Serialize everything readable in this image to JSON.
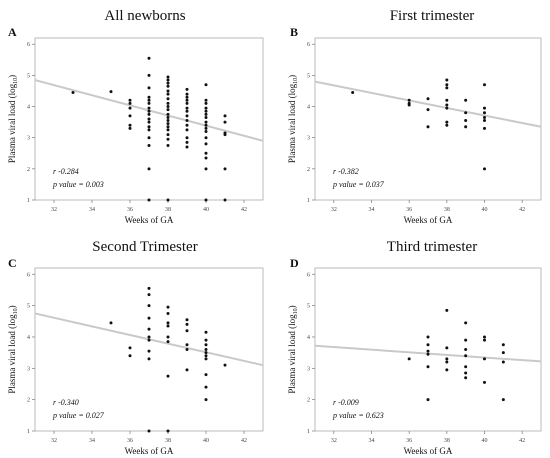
{
  "chart_data": [
    {
      "type": "scatter",
      "panel_letter": "A",
      "title": "All newborns",
      "xlabel": "Weeks of GA",
      "ylabel_main": "Plasma viral load (log",
      "ylabel_sub": "10",
      "ylabel_close": ")",
      "xlim": [
        31,
        43
      ],
      "ylim": [
        1,
        6.2
      ],
      "xticks": [
        "32",
        "34",
        "36",
        "38",
        "40",
        "42"
      ],
      "yticks": [
        "1",
        "2",
        "3",
        "4",
        "5",
        "6"
      ],
      "grid": false,
      "stats": {
        "r": "r -0.284",
        "p": "p value = 0.003"
      },
      "regression": {
        "x": [
          31,
          43
        ],
        "y": [
          4.85,
          2.9
        ]
      },
      "points": [
        [
          33,
          4.45
        ],
        [
          35,
          4.48
        ],
        [
          36,
          4.2
        ],
        [
          36,
          4.1
        ],
        [
          36,
          3.95
        ],
        [
          36,
          3.7
        ],
        [
          36,
          3.4
        ],
        [
          36,
          3.3
        ],
        [
          37,
          5.55
        ],
        [
          37,
          5.0
        ],
        [
          37,
          4.6
        ],
        [
          37,
          4.3
        ],
        [
          37,
          4.2
        ],
        [
          37,
          4.1
        ],
        [
          37,
          3.95
        ],
        [
          37,
          3.85
        ],
        [
          37,
          3.75
        ],
        [
          37,
          3.6
        ],
        [
          37,
          3.5
        ],
        [
          37,
          3.35
        ],
        [
          37,
          3.25
        ],
        [
          37,
          3.0
        ],
        [
          37,
          2.75
        ],
        [
          37,
          2.0
        ],
        [
          37,
          1.0
        ],
        [
          38,
          4.95
        ],
        [
          38,
          4.85
        ],
        [
          38,
          4.75
        ],
        [
          38,
          4.65
        ],
        [
          38,
          4.5
        ],
        [
          38,
          4.4
        ],
        [
          38,
          4.25
        ],
        [
          38,
          4.1
        ],
        [
          38,
          4.0
        ],
        [
          38,
          3.9
        ],
        [
          38,
          3.75
        ],
        [
          38,
          3.65
        ],
        [
          38,
          3.55
        ],
        [
          38,
          3.45
        ],
        [
          38,
          3.35
        ],
        [
          38,
          3.25
        ],
        [
          38,
          3.1
        ],
        [
          38,
          2.95
        ],
        [
          38,
          2.75
        ],
        [
          38,
          1.0
        ],
        [
          39,
          4.55
        ],
        [
          39,
          4.4
        ],
        [
          39,
          4.3
        ],
        [
          39,
          4.2
        ],
        [
          39,
          4.1
        ],
        [
          39,
          3.95
        ],
        [
          39,
          3.85
        ],
        [
          39,
          3.7
        ],
        [
          39,
          3.55
        ],
        [
          39,
          3.4
        ],
        [
          39,
          3.25
        ],
        [
          39,
          3.0
        ],
        [
          39,
          2.85
        ],
        [
          39,
          2.7
        ],
        [
          40,
          4.7
        ],
        [
          40,
          4.2
        ],
        [
          40,
          4.1
        ],
        [
          40,
          3.95
        ],
        [
          40,
          3.85
        ],
        [
          40,
          3.75
        ],
        [
          40,
          3.65
        ],
        [
          40,
          3.5
        ],
        [
          40,
          3.4
        ],
        [
          40,
          3.3
        ],
        [
          40,
          3.2
        ],
        [
          40,
          3.0
        ],
        [
          40,
          2.8
        ],
        [
          40,
          2.5
        ],
        [
          40,
          2.35
        ],
        [
          40,
          2.0
        ],
        [
          40,
          1.0
        ],
        [
          41,
          3.7
        ],
        [
          41,
          3.5
        ],
        [
          41,
          3.15
        ],
        [
          41,
          3.1
        ],
        [
          41,
          2.0
        ],
        [
          41,
          1.0
        ]
      ]
    },
    {
      "type": "scatter",
      "panel_letter": "B",
      "title": "First trimester",
      "xlabel": "Weeks of GA",
      "ylabel_main": "Plasma viral load (log",
      "ylabel_sub": "10",
      "ylabel_close": ")",
      "xlim": [
        31,
        43
      ],
      "ylim": [
        1,
        6.2
      ],
      "xticks": [
        "32",
        "34",
        "36",
        "38",
        "40",
        "42"
      ],
      "yticks": [
        "1",
        "2",
        "3",
        "4",
        "5",
        "6"
      ],
      "grid": false,
      "stats": {
        "r": "r -0.382",
        "p": "p value = 0.037"
      },
      "regression": {
        "x": [
          31,
          43
        ],
        "y": [
          4.8,
          3.35
        ]
      },
      "points": [
        [
          33,
          4.45
        ],
        [
          36,
          4.2
        ],
        [
          36,
          4.1
        ],
        [
          36,
          4.05
        ],
        [
          37,
          4.25
        ],
        [
          37,
          3.9
        ],
        [
          37,
          3.35
        ],
        [
          38,
          4.85
        ],
        [
          38,
          4.7
        ],
        [
          38,
          4.6
        ],
        [
          38,
          4.2
        ],
        [
          38,
          4.05
        ],
        [
          38,
          3.95
        ],
        [
          38,
          3.5
        ],
        [
          38,
          3.4
        ],
        [
          39,
          4.2
        ],
        [
          39,
          3.8
        ],
        [
          39,
          3.55
        ],
        [
          39,
          3.35
        ],
        [
          40,
          4.7
        ],
        [
          40,
          3.95
        ],
        [
          40,
          3.8
        ],
        [
          40,
          3.65
        ],
        [
          40,
          3.55
        ],
        [
          40,
          3.3
        ],
        [
          40,
          2.0
        ]
      ]
    },
    {
      "type": "scatter",
      "panel_letter": "C",
      "title": "Second Trimester",
      "xlabel": "Weeks of GA",
      "ylabel_main": "Plasma viral load (log",
      "ylabel_sub": "10",
      "ylabel_close": ")",
      "xlim": [
        31,
        43
      ],
      "ylim": [
        1,
        6.2
      ],
      "xticks": [
        "32",
        "34",
        "36",
        "38",
        "40",
        "42"
      ],
      "yticks": [
        "1",
        "2",
        "3",
        "4",
        "5",
        "6"
      ],
      "grid": false,
      "stats": {
        "r": "r -0.340",
        "p": "p value = 0.027"
      },
      "regression": {
        "x": [
          31,
          43
        ],
        "y": [
          4.75,
          3.1
        ]
      },
      "points": [
        [
          35,
          4.45
        ],
        [
          36,
          3.65
        ],
        [
          36,
          3.4
        ],
        [
          37,
          5.55
        ],
        [
          37,
          5.35
        ],
        [
          37,
          5.0
        ],
        [
          37,
          4.6
        ],
        [
          37,
          4.25
        ],
        [
          37,
          4.0
        ],
        [
          37,
          3.9
        ],
        [
          37,
          3.55
        ],
        [
          37,
          3.3
        ],
        [
          37,
          1.0
        ],
        [
          38,
          4.95
        ],
        [
          38,
          4.75
        ],
        [
          38,
          4.45
        ],
        [
          38,
          4.35
        ],
        [
          38,
          4.0
        ],
        [
          38,
          3.85
        ],
        [
          38,
          2.75
        ],
        [
          38,
          1.0
        ],
        [
          39,
          4.55
        ],
        [
          39,
          4.4
        ],
        [
          39,
          4.2
        ],
        [
          39,
          3.75
        ],
        [
          39,
          3.6
        ],
        [
          39,
          2.95
        ],
        [
          40,
          4.15
        ],
        [
          40,
          3.9
        ],
        [
          40,
          3.75
        ],
        [
          40,
          3.6
        ],
        [
          40,
          3.5
        ],
        [
          40,
          3.4
        ],
        [
          40,
          3.3
        ],
        [
          40,
          2.8
        ],
        [
          40,
          2.4
        ],
        [
          40,
          2.0
        ],
        [
          41,
          3.1
        ]
      ]
    },
    {
      "type": "scatter",
      "panel_letter": "D",
      "title": "Third trimester",
      "xlabel": "Weeks of GA",
      "ylabel_main": "Plasma viral load (log",
      "ylabel_sub": "10",
      "ylabel_close": ")",
      "xlim": [
        31,
        43
      ],
      "ylim": [
        1,
        6.2
      ],
      "xticks": [
        "32",
        "34",
        "36",
        "38",
        "40",
        "42"
      ],
      "yticks": [
        "1",
        "2",
        "3",
        "4",
        "5",
        "6"
      ],
      "grid": false,
      "stats": {
        "r": "r -0.009",
        "p": "p value = 0.623"
      },
      "regression": {
        "x": [
          31,
          43
        ],
        "y": [
          3.72,
          3.22
        ]
      },
      "points": [
        [
          36,
          3.3
        ],
        [
          37,
          4.0
        ],
        [
          37,
          3.75
        ],
        [
          37,
          3.55
        ],
        [
          37,
          3.45
        ],
        [
          37,
          3.05
        ],
        [
          37,
          2.0
        ],
        [
          38,
          4.85
        ],
        [
          38,
          3.65
        ],
        [
          38,
          3.3
        ],
        [
          38,
          3.2
        ],
        [
          38,
          2.95
        ],
        [
          39,
          4.45
        ],
        [
          39,
          3.9
        ],
        [
          39,
          3.6
        ],
        [
          39,
          3.4
        ],
        [
          39,
          3.05
        ],
        [
          39,
          2.85
        ],
        [
          39,
          2.7
        ],
        [
          40,
          4.0
        ],
        [
          40,
          3.9
        ],
        [
          40,
          3.3
        ],
        [
          40,
          2.55
        ],
        [
          41,
          3.75
        ],
        [
          41,
          3.5
        ],
        [
          41,
          3.2
        ],
        [
          41,
          2.0
        ]
      ]
    }
  ]
}
